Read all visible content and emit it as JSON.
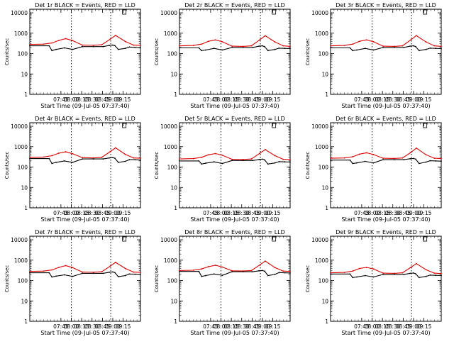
{
  "colors": {
    "events": "#000000",
    "lld": "#dd0000",
    "axis": "#000000"
  },
  "shared": {
    "xlabel": "Start Time (09-Jul-05 07:37:40)",
    "ylabel": "Counts/sec",
    "x_tick_labels": [
      "07:45",
      "08:00",
      "08:15",
      "08:30",
      "08:45",
      "09:00",
      "09:15"
    ],
    "y_tick_labels": [
      "1",
      "10",
      "100",
      "1000",
      "10000"
    ],
    "x_ticks_min": [
      7.25,
      8.0,
      8.75,
      9.5,
      10.25,
      11.0,
      11.75
    ],
    "xlim_min": [
      5.0,
      13.0
    ],
    "ylim": [
      1,
      15000
    ],
    "yscale": "log",
    "series_names": [
      "Events",
      "LLD"
    ]
  },
  "chart_data": [
    {
      "type": "line",
      "title": "Det 1r BLACK = Events, RED = LLD",
      "dotted_lines_min": [
        8.0,
        10.85
      ],
      "series": [
        {
          "name": "Events",
          "x": [
            5,
            6.4,
            6.6,
            6.9,
            7.5,
            8.1,
            8.8,
            9.6,
            10.3,
            10.75,
            11,
            11.15,
            11.4,
            11.9,
            12.2,
            12.6,
            13
          ],
          "y": [
            240,
            240,
            140,
            160,
            190,
            160,
            220,
            220,
            220,
            250,
            260,
            245,
            160,
            180,
            210,
            200,
            190
          ]
        },
        {
          "name": "LLD",
          "x": [
            5,
            6,
            6.6,
            7.1,
            7.6,
            8.1,
            8.8,
            9.6,
            10.2,
            10.8,
            11.2,
            11.9,
            12.5,
            13
          ],
          "y": [
            280,
            290,
            330,
            440,
            540,
            430,
            260,
            255,
            270,
            500,
            780,
            390,
            260,
            250
          ]
        }
      ]
    },
    {
      "type": "line",
      "title": "Det 2r BLACK = Events, RED = LLD",
      "dotted_lines_min": [
        8.0,
        10.85
      ],
      "series": [
        {
          "name": "Events",
          "x": [
            5,
            6.4,
            6.6,
            6.9,
            7.5,
            8.1,
            8.8,
            9.6,
            10.3,
            10.75,
            11,
            11.15,
            11.4,
            11.9,
            12.2,
            12.6,
            13
          ],
          "y": [
            190,
            190,
            140,
            150,
            180,
            150,
            200,
            200,
            200,
            230,
            240,
            220,
            140,
            160,
            185,
            180,
            175
          ]
        },
        {
          "name": "LLD",
          "x": [
            5,
            6,
            6.6,
            7.1,
            7.6,
            8.1,
            8.8,
            9.6,
            10.2,
            10.8,
            11.2,
            11.9,
            12.5,
            13
          ],
          "y": [
            240,
            250,
            290,
            400,
            470,
            380,
            230,
            225,
            240,
            470,
            750,
            370,
            240,
            225
          ]
        }
      ]
    },
    {
      "type": "line",
      "title": "Det 3r BLACK = Events, RED = LLD",
      "dotted_lines_min": [
        8.0,
        10.85
      ],
      "series": [
        {
          "name": "Events",
          "x": [
            5,
            6.4,
            6.6,
            6.9,
            7.5,
            8.1,
            8.8,
            9.6,
            10.3,
            10.75,
            11,
            11.15,
            11.4,
            11.9,
            12.2,
            12.6,
            13
          ],
          "y": [
            190,
            190,
            140,
            150,
            180,
            150,
            200,
            200,
            200,
            230,
            240,
            220,
            140,
            160,
            185,
            180,
            175
          ]
        },
        {
          "name": "LLD",
          "x": [
            5,
            6,
            6.6,
            7.1,
            7.6,
            8.1,
            8.8,
            9.6,
            10.2,
            10.8,
            11.2,
            11.9,
            12.5,
            13
          ],
          "y": [
            240,
            250,
            290,
            400,
            470,
            380,
            230,
            225,
            240,
            470,
            760,
            370,
            240,
            225
          ]
        }
      ]
    },
    {
      "type": "line",
      "title": "Det 4r BLACK = Events, RED = LLD",
      "dotted_lines_min": [
        8.0,
        10.85
      ],
      "series": [
        {
          "name": "Events",
          "x": [
            5,
            6.4,
            6.6,
            6.9,
            7.5,
            8.1,
            8.8,
            9.6,
            10.3,
            10.75,
            11,
            11.15,
            11.4,
            11.9,
            12.2,
            12.6,
            13
          ],
          "y": [
            260,
            260,
            150,
            170,
            200,
            170,
            250,
            250,
            250,
            280,
            290,
            270,
            170,
            190,
            230,
            230,
            220
          ]
        },
        {
          "name": "LLD",
          "x": [
            5,
            6,
            6.6,
            7.1,
            7.6,
            8.1,
            8.8,
            9.6,
            10.2,
            10.8,
            11.2,
            11.9,
            12.5,
            13
          ],
          "y": [
            300,
            310,
            360,
            480,
            560,
            450,
            290,
            280,
            300,
            560,
            880,
            420,
            280,
            270
          ]
        }
      ]
    },
    {
      "type": "line",
      "title": "Det 5r BLACK = Events, RED = LLD",
      "dotted_lines_min": [
        8.0,
        10.85
      ],
      "series": [
        {
          "name": "Events",
          "x": [
            5,
            6.4,
            6.6,
            6.9,
            7.5,
            8.1,
            8.8,
            9.6,
            10.3,
            10.75,
            11,
            11.15,
            11.4,
            11.9,
            12.2,
            12.6,
            13
          ],
          "y": [
            200,
            200,
            140,
            155,
            180,
            150,
            210,
            210,
            210,
            235,
            245,
            225,
            140,
            160,
            185,
            180,
            175
          ]
        },
        {
          "name": "LLD",
          "x": [
            5,
            6,
            6.6,
            7.1,
            7.6,
            8.1,
            8.8,
            9.6,
            10.2,
            10.8,
            11.2,
            11.9,
            12.5,
            13
          ],
          "y": [
            250,
            260,
            300,
            400,
            460,
            380,
            240,
            235,
            250,
            470,
            720,
            360,
            240,
            230
          ]
        }
      ]
    },
    {
      "type": "line",
      "title": "Det 6r BLACK = Events, RED = LLD",
      "dotted_lines_min": [
        8.0,
        10.85
      ],
      "series": [
        {
          "name": "Events",
          "x": [
            5,
            6.4,
            6.6,
            6.9,
            7.5,
            8.1,
            8.8,
            9.6,
            10.3,
            10.75,
            11,
            11.15,
            11.4,
            11.9,
            12.2,
            12.6,
            13
          ],
          "y": [
            220,
            220,
            150,
            160,
            190,
            160,
            230,
            230,
            230,
            255,
            265,
            245,
            150,
            175,
            205,
            200,
            195
          ]
        },
        {
          "name": "LLD",
          "x": [
            5,
            6,
            6.6,
            7.1,
            7.6,
            8.1,
            8.8,
            9.6,
            10.2,
            10.8,
            11.2,
            11.9,
            12.5,
            13
          ],
          "y": [
            270,
            280,
            320,
            430,
            500,
            410,
            270,
            265,
            280,
            520,
            850,
            400,
            270,
            260
          ]
        }
      ]
    },
    {
      "type": "line",
      "title": "Det 7r BLACK = Events, RED = LLD",
      "dotted_lines_min": [
        8.0,
        10.85
      ],
      "series": [
        {
          "name": "Events",
          "x": [
            5,
            6.4,
            6.6,
            6.9,
            7.5,
            8.1,
            8.8,
            9.6,
            10.3,
            10.75,
            11,
            11.15,
            11.4,
            11.9,
            12.2,
            12.6,
            13
          ],
          "y": [
            240,
            240,
            150,
            165,
            190,
            160,
            225,
            225,
            225,
            255,
            265,
            245,
            155,
            175,
            210,
            205,
            200
          ]
        },
        {
          "name": "LLD",
          "x": [
            5,
            6,
            6.6,
            7.1,
            7.6,
            8.1,
            8.8,
            9.6,
            10.2,
            10.8,
            11.2,
            11.9,
            12.5,
            13
          ],
          "y": [
            280,
            290,
            330,
            440,
            540,
            430,
            260,
            255,
            270,
            500,
            780,
            390,
            260,
            250
          ]
        }
      ]
    },
    {
      "type": "line",
      "title": "Det 8r BLACK = Events, RED = LLD",
      "dotted_lines_min": [
        8.0,
        10.85
      ],
      "series": [
        {
          "name": "Events",
          "x": [
            5,
            6.4,
            6.6,
            6.9,
            7.5,
            8.1,
            8.8,
            9.6,
            10.3,
            10.75,
            11,
            11.15,
            11.4,
            11.9,
            12.2,
            12.6,
            13
          ],
          "y": [
            280,
            280,
            160,
            175,
            210,
            180,
            270,
            270,
            270,
            300,
            310,
            290,
            175,
            200,
            245,
            240,
            235
          ]
        },
        {
          "name": "LLD",
          "x": [
            5,
            6,
            6.6,
            7.1,
            7.6,
            8.1,
            8.8,
            9.6,
            10.2,
            10.8,
            11.2,
            11.9,
            12.5,
            13
          ],
          "y": [
            310,
            320,
            370,
            480,
            560,
            460,
            300,
            295,
            310,
            580,
            900,
            430,
            290,
            280
          ]
        }
      ]
    },
    {
      "type": "line",
      "title": "Det 9r BLACK = Events, RED = LLD",
      "dotted_lines_min": [
        8.0,
        10.85
      ],
      "series": [
        {
          "name": "Events",
          "x": [
            5,
            6.4,
            6.6,
            6.9,
            7.5,
            8.1,
            8.8,
            9.6,
            10.3,
            10.75,
            11,
            11.15,
            11.4,
            11.9,
            12.2,
            12.6,
            13
          ],
          "y": [
            210,
            210,
            140,
            150,
            175,
            150,
            200,
            200,
            200,
            225,
            235,
            215,
            140,
            160,
            185,
            180,
            175
          ]
        },
        {
          "name": "LLD",
          "x": [
            5,
            6,
            6.6,
            7.1,
            7.6,
            8.1,
            8.8,
            9.6,
            10.2,
            10.8,
            11.2,
            11.9,
            12.5,
            13
          ],
          "y": [
            240,
            250,
            290,
            390,
            440,
            370,
            230,
            225,
            240,
            440,
            680,
            340,
            230,
            220
          ]
        }
      ]
    }
  ]
}
